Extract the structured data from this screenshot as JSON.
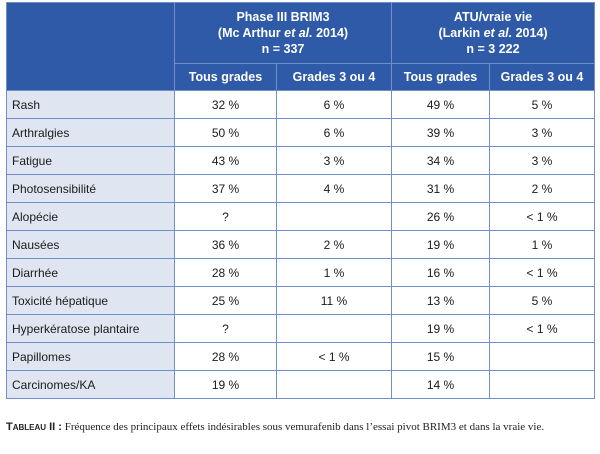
{
  "table": {
    "studies": [
      {
        "line1": "Phase III BRIM3",
        "line2_pre": "(Mc Arthur ",
        "line2_em": "et al.",
        "line2_post": " 2014)",
        "line3": "n = 337"
      },
      {
        "line1": "ATU/vraie vie",
        "line2_pre": "(Larkin ",
        "line2_em": "et al.",
        "line2_post": " 2014)",
        "line3": "n = 3 222"
      }
    ],
    "grade_headers": [
      "Tous grades",
      "Grades 3 ou 4",
      "Tous grades",
      "Grades 3 ou 4"
    ],
    "rows": [
      {
        "label": "Rash",
        "values": [
          "32 %",
          "6 %",
          "49 %",
          "5 %"
        ]
      },
      {
        "label": "Arthralgies",
        "values": [
          "50 %",
          "6 %",
          "39 %",
          "3 %"
        ]
      },
      {
        "label": "Fatigue",
        "values": [
          "43 %",
          "3 %",
          "34 %",
          "3 %"
        ]
      },
      {
        "label": "Photosensibilité",
        "values": [
          "37 %",
          "4 %",
          "31 %",
          "2 %"
        ]
      },
      {
        "label": "Alopécie",
        "values": [
          "?",
          "",
          "26 %",
          "< 1 %"
        ]
      },
      {
        "label": "Nausées",
        "values": [
          "36 %",
          "2 %",
          "19 %",
          "1 %"
        ]
      },
      {
        "label": "Diarrhée",
        "values": [
          "28 %",
          "1 %",
          "16 %",
          "< 1 %"
        ]
      },
      {
        "label": "Toxicité hépatique",
        "values": [
          "25 %",
          "11 %",
          "13 %",
          "5 %"
        ]
      },
      {
        "label": "Hyperkératose plantaire",
        "values": [
          "?",
          "",
          "19 %",
          "< 1 %"
        ]
      },
      {
        "label": "Papillomes",
        "values": [
          "28 %",
          "< 1 %",
          "15 %",
          ""
        ]
      },
      {
        "label": "Carcinomes/KA",
        "values": [
          "19 %",
          "",
          "14 %",
          ""
        ]
      }
    ]
  },
  "caption": {
    "label": "Tableau II :",
    "text": " Fréquence des principaux effets indésirables sous vemurafenib dans l’essai pivot BRIM3 et dans la vraie vie."
  }
}
